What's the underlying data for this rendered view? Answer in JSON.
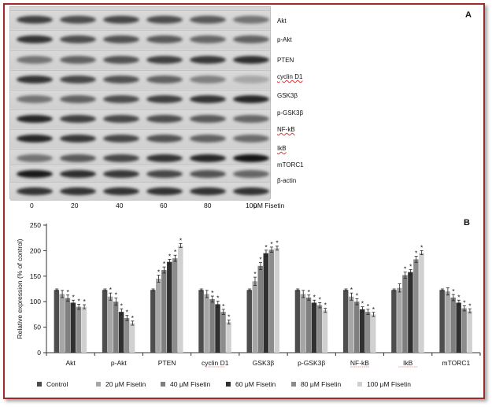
{
  "panel_a": {
    "letter": "A",
    "proteins": [
      "Akt",
      "p-Akt",
      "PTEN",
      "cyclin D1",
      "GSK3β",
      "p-GSK3β",
      "NF-kB",
      "IkB",
      "mTORC1",
      "β-actin"
    ],
    "lane_labels": [
      "0",
      "20",
      "40",
      "60",
      "80",
      "100"
    ],
    "lane_unit": "μM Fisetin"
  },
  "panel_b": {
    "letter": "B",
    "ylabel": "Relative expression  (% of control)"
  },
  "chart_data": {
    "type": "bar",
    "categories": [
      "Akt",
      "p-Akt",
      "PTEN",
      "cyclin D1",
      "GSK3β",
      "p-GSK3β",
      "NF-kB",
      "IkB",
      "mTORC1"
    ],
    "series": [
      {
        "name": "Control",
        "color": "#4d4d4d",
        "values": [
          123,
          123,
          123,
          123,
          123,
          123,
          123,
          123,
          123
        ],
        "errors": [
          2,
          2,
          2,
          2,
          2,
          2,
          2,
          2,
          2
        ],
        "significant": [
          false,
          false,
          false,
          false,
          false,
          false,
          false,
          false,
          false
        ]
      },
      {
        "name": "20 μM Fisetin",
        "color": "#a6a6a6",
        "values": [
          115,
          110,
          145,
          115,
          140,
          115,
          110,
          127,
          120
        ],
        "errors": [
          7,
          7,
          7,
          7,
          8,
          7,
          7,
          8,
          7
        ],
        "significant": [
          false,
          true,
          true,
          false,
          true,
          false,
          true,
          false,
          false
        ]
      },
      {
        "name": "40 μM Fisetin",
        "color": "#7f7f7f",
        "values": [
          107,
          100,
          162,
          105,
          170,
          108,
          100,
          152,
          108
        ],
        "errors": [
          6,
          7,
          6,
          6,
          7,
          5,
          6,
          6,
          6
        ],
        "significant": [
          true,
          true,
          true,
          true,
          true,
          true,
          true,
          true,
          true
        ]
      },
      {
        "name": "60 μM Fisetin",
        "color": "#303030",
        "values": [
          98,
          80,
          178,
          95,
          195,
          98,
          85,
          158,
          98
        ],
        "errors": [
          5,
          6,
          5,
          6,
          6,
          5,
          5,
          5,
          5
        ],
        "significant": [
          true,
          true,
          true,
          true,
          true,
          true,
          true,
          true,
          true
        ]
      },
      {
        "name": "80 μM Fisetin",
        "color": "#8c8c8c",
        "values": [
          90,
          68,
          185,
          80,
          202,
          93,
          80,
          183,
          87
        ],
        "errors": [
          5,
          5,
          6,
          5,
          5,
          5,
          5,
          6,
          5
        ],
        "significant": [
          true,
          true,
          true,
          true,
          true,
          true,
          true,
          true,
          true
        ]
      },
      {
        "name": "100 μM Fisetin",
        "color": "#d0d0d0",
        "values": [
          90,
          58,
          210,
          60,
          205,
          83,
          75,
          196,
          82
        ],
        "errors": [
          4,
          4,
          4,
          4,
          4,
          4,
          4,
          4,
          4
        ],
        "significant": [
          true,
          true,
          true,
          true,
          true,
          true,
          true,
          true,
          true
        ]
      }
    ],
    "ylim": [
      0,
      250
    ],
    "yticks": [
      0,
      50,
      100,
      150,
      200,
      250
    ],
    "significance_marker": "*",
    "grid": false,
    "legend_position": "bottom"
  }
}
